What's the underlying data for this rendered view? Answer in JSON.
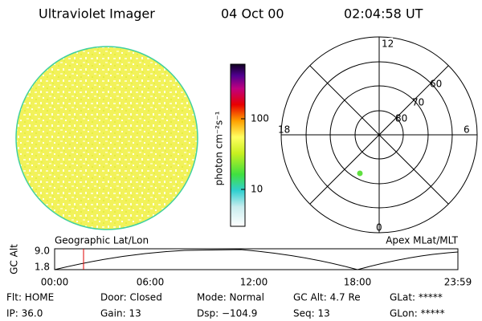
{
  "header": {
    "title": "Ultraviolet Imager",
    "date": "04 Oct 00",
    "time": "02:04:58 UT"
  },
  "colorbar": {
    "label": "photon cm⁻²s⁻¹",
    "ticks": [
      "100",
      "10"
    ]
  },
  "polar": {
    "hour_labels": [
      "12",
      "18",
      "6",
      "0"
    ],
    "lat_labels": [
      "60",
      "70",
      "80"
    ]
  },
  "timeline": {
    "ylabel": "GC Alt",
    "yticks": [
      "9.0",
      "1.8"
    ],
    "left_title": "Geographic Lat/Lon",
    "right_title": "Apex MLat/MLT",
    "xticks": [
      "00:00",
      "06:00",
      "12:00",
      "18:00",
      "23:59"
    ]
  },
  "status": {
    "rows": [
      [
        "Flt: HOME",
        "Door: Closed",
        "Mode: Normal",
        "GC Alt: 4.7 Re",
        "GLat: *****"
      ],
      [
        "IP: 36.0",
        "Gain: 13",
        "Dsp: −104.9",
        "Seq: 13",
        "GLon: *****"
      ]
    ]
  }
}
